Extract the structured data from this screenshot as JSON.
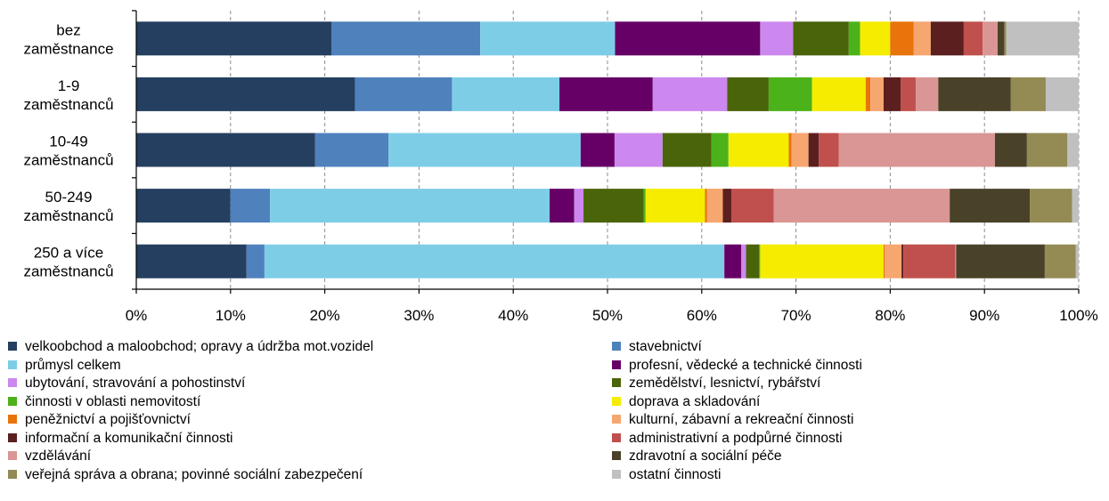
{
  "chart_data": {
    "type": "bar",
    "orientation": "horizontal",
    "stacked": "percent",
    "categories": [
      [
        "bez",
        "zaměstnance"
      ],
      [
        "1-9",
        "zaměstnanců"
      ],
      [
        "10-49",
        "zaměstnanců"
      ],
      [
        "50-249",
        "zaměstnanců"
      ],
      [
        "250 a více",
        "zaměstnanců"
      ]
    ],
    "xlim": [
      0,
      100
    ],
    "x_ticks": [
      "0%",
      "10%",
      "20%",
      "30%",
      "40%",
      "50%",
      "60%",
      "70%",
      "80%",
      "90%",
      "100%"
    ],
    "grid": "vertical dashed",
    "legend_position": "bottom",
    "series": [
      {
        "name": "velkoobchod a maloobchod; opravy a údržba mot.vozidel",
        "color": "#243F60",
        "values": [
          20.7,
          23.2,
          19.0,
          10.0,
          11.7
        ]
      },
      {
        "name": "stavebnictví",
        "color": "#4F81BD",
        "values": [
          15.8,
          10.3,
          7.8,
          4.2,
          1.9
        ]
      },
      {
        "name": "průmysl celkem",
        "color": "#7ECDE7",
        "values": [
          14.3,
          11.4,
          20.4,
          29.7,
          48.8
        ]
      },
      {
        "name": "profesní, vědecké a technické činnosti",
        "color": "#660066",
        "values": [
          15.4,
          9.9,
          3.6,
          2.6,
          1.8
        ]
      },
      {
        "name": "ubytování, stravování a pohostinství",
        "color": "#CC88EE",
        "values": [
          3.5,
          7.9,
          5.1,
          1.0,
          0.5
        ]
      },
      {
        "name": "zemědělství, lesnictví, rybářství",
        "color": "#4A6409",
        "values": [
          5.9,
          4.4,
          5.2,
          6.4,
          1.4
        ]
      },
      {
        "name": "činnosti v oblasti nemovitostí",
        "color": "#4CB21A",
        "values": [
          1.2,
          4.6,
          1.8,
          0.2,
          0.1
        ]
      },
      {
        "name": "doprava a skladování",
        "color": "#F5EC00",
        "values": [
          3.2,
          5.7,
          6.4,
          6.3,
          13.1
        ]
      },
      {
        "name": "peněžnictví a pojišťovnictví",
        "color": "#E8740B",
        "values": [
          2.5,
          0.5,
          0.3,
          0.2,
          0.1
        ]
      },
      {
        "name": "kulturní, zábavní a rekreační činnosti",
        "color": "#F6A66F",
        "values": [
          1.8,
          1.4,
          1.8,
          1.7,
          1.8
        ]
      },
      {
        "name": "informační a komunikační činnosti",
        "color": "#5C1F1F",
        "values": [
          3.5,
          1.8,
          1.1,
          0.9,
          0.2
        ]
      },
      {
        "name": "administrativní a podpůrné činnosti",
        "color": "#C0504D",
        "values": [
          2.0,
          1.6,
          2.1,
          4.5,
          5.5
        ]
      },
      {
        "name": "vzdělávání",
        "color": "#D99694",
        "values": [
          1.6,
          2.4,
          16.6,
          18.7,
          0.1
        ]
      },
      {
        "name": "zdravotní a sociální péče",
        "color": "#4A4129",
        "values": [
          0.7,
          7.7,
          3.4,
          8.5,
          9.4
        ]
      },
      {
        "name": "veřejná správa a obrana; povinné sociální zabezpečení",
        "color": "#948A54",
        "values": [
          0.2,
          3.7,
          4.3,
          4.5,
          3.3
        ]
      },
      {
        "name": "ostatní činnosti",
        "color": "#C0C0C0",
        "values": [
          7.7,
          3.5,
          1.2,
          0.7,
          0.3
        ]
      }
    ]
  }
}
